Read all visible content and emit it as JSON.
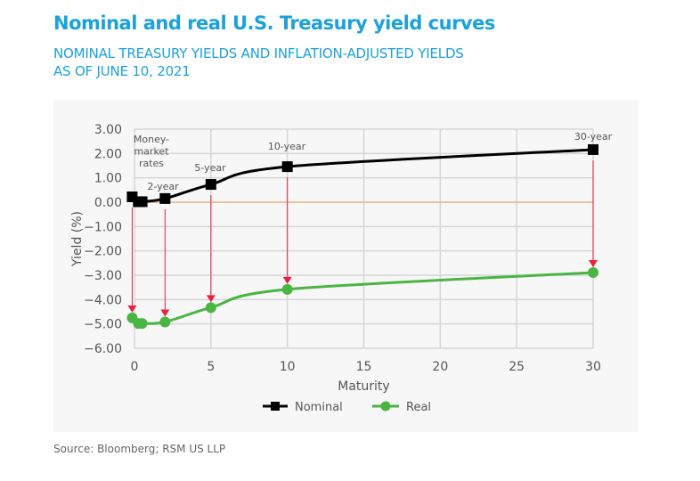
{
  "title": "Nominal and real U.S. Treasury yield curves",
  "subtitle_line1": "NOMINAL TREASURY YIELDS AND INFLATION-ADJUSTED YIELDS",
  "subtitle_line2": "AS OF JUNE 10, 2021",
  "source": "Source: Bloomberg; RSM US LLP",
  "chart_data": {
    "type": "line",
    "xlabel": "Maturity",
    "ylabel": "Yield (%)",
    "xlim": [
      0,
      30
    ],
    "ylim": [
      -6,
      3
    ],
    "xticks": [
      0,
      5,
      10,
      15,
      20,
      25,
      30
    ],
    "yticks": [
      "3.00",
      "2.00",
      "1.00",
      "0.00",
      "-1.00",
      "-2.00",
      "-3.00",
      "-4.00",
      "-5.00",
      "-6.00"
    ],
    "grid": true,
    "legend_position": "bottom",
    "x": [
      0,
      0.25,
      0.5,
      2,
      5,
      10,
      30
    ],
    "series": [
      {
        "name": "Nominal",
        "color": "#000000",
        "marker": "square",
        "values": [
          0.22,
          0.02,
          0.02,
          0.15,
          0.73,
          1.46,
          2.16
        ]
      },
      {
        "name": "Real",
        "color": "#4bb543",
        "marker": "circle",
        "values": [
          -4.75,
          -4.98,
          -4.98,
          -4.92,
          -4.33,
          -3.58,
          -2.89
        ]
      }
    ],
    "annotations": [
      {
        "text": "Money-market rates",
        "lines": [
          "Money-",
          "market",
          "rates"
        ],
        "x": 0
      },
      {
        "text": "2-year",
        "x": 2
      },
      {
        "text": "5-year",
        "x": 5
      },
      {
        "text": "10-year",
        "x": 10
      },
      {
        "text": "30-year",
        "x": 30
      }
    ],
    "arrow_color": "#e8213f",
    "zero_line_color": "#f0a060"
  }
}
